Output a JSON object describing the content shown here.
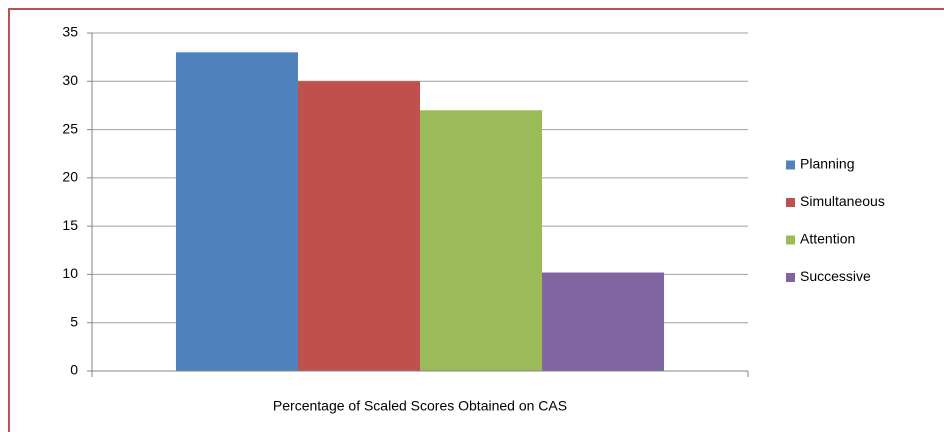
{
  "chart_data": {
    "type": "bar",
    "categories": [
      "Percentage of Scaled Scores Obtained on CAS"
    ],
    "series": [
      {
        "name": "Planning",
        "color": "#4f81bd",
        "values": [
          33
        ]
      },
      {
        "name": "Simultaneous",
        "color": "#c0504d",
        "values": [
          30
        ]
      },
      {
        "name": "Attention",
        "color": "#9bbb59",
        "values": [
          27
        ]
      },
      {
        "name": "Successive",
        "color": "#8064a2",
        "values": [
          10.2
        ]
      }
    ],
    "ylim": [
      0,
      35
    ],
    "yticks": [
      0,
      5,
      10,
      15,
      20,
      25,
      30,
      35
    ],
    "grid": true,
    "legend": "right"
  }
}
